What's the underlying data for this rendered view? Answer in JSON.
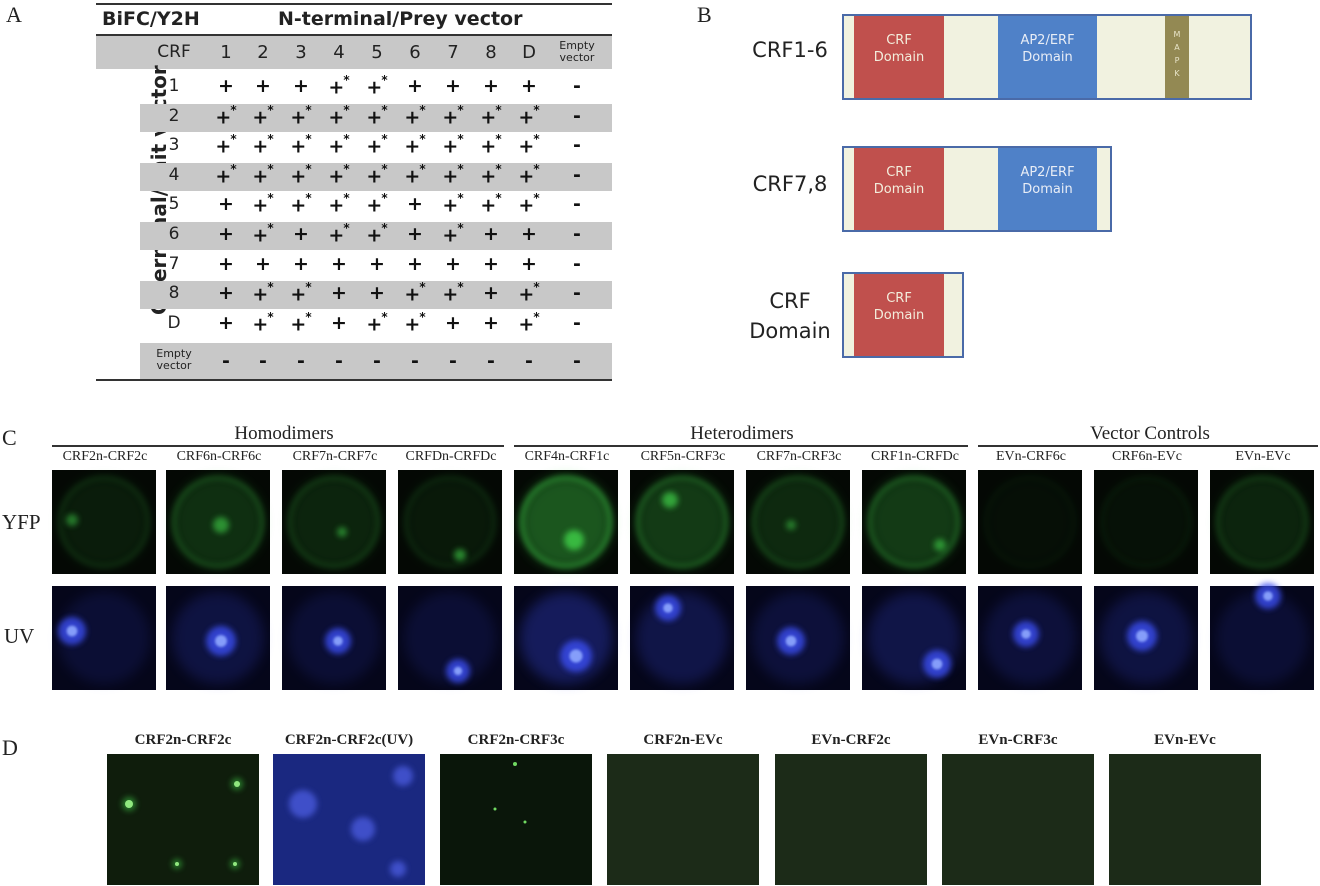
{
  "panel_labels": {
    "a": "A",
    "b": "B",
    "c": "C",
    "d": "D"
  },
  "panelA": {
    "corner": "BiFC/Y2H",
    "prey_header": "N-terminal/Prey vector",
    "bait_header": "C-terminal/Bait vector",
    "crf_label": "CRF",
    "columns": [
      "1",
      "2",
      "3",
      "4",
      "5",
      "6",
      "7",
      "8",
      "D"
    ],
    "empty_col_line1": "Empty",
    "empty_col_line2": "vector",
    "rows": [
      {
        "label": "1",
        "cells": [
          "+",
          "+",
          "+",
          "+*",
          "+*",
          "+",
          "+",
          "+",
          "+"
        ],
        "empty": "-"
      },
      {
        "label": "2",
        "cells": [
          "+*",
          "+*",
          "+*",
          "+*",
          "+*",
          "+*",
          "+*",
          "+*",
          "+*"
        ],
        "empty": "-"
      },
      {
        "label": "3",
        "cells": [
          "+*",
          "+*",
          "+*",
          "+*",
          "+*",
          "+*",
          "+*",
          "+*",
          "+*"
        ],
        "empty": "-"
      },
      {
        "label": "4",
        "cells": [
          "+*",
          "+*",
          "+*",
          "+*",
          "+*",
          "+*",
          "+*",
          "+*",
          "+*"
        ],
        "empty": "-"
      },
      {
        "label": "5",
        "cells": [
          "+",
          "+*",
          "+*",
          "+*",
          "+*",
          "+",
          "+*",
          "+*",
          "+*"
        ],
        "empty": "-"
      },
      {
        "label": "6",
        "cells": [
          "+",
          "+*",
          "+",
          "+*",
          "+*",
          "+",
          "+*",
          "+",
          "+"
        ],
        "empty": "-"
      },
      {
        "label": "7",
        "cells": [
          "+",
          "+",
          "+",
          "+",
          "+",
          "+",
          "+",
          "+",
          "+"
        ],
        "empty": "-"
      },
      {
        "label": "8",
        "cells": [
          "+",
          "+*",
          "+*",
          "+",
          "+",
          "+*",
          "+*",
          "+",
          "+*"
        ],
        "empty": "-"
      },
      {
        "label": "D",
        "cells": [
          "+",
          "+*",
          "+*",
          "+",
          "+*",
          "+*",
          "+",
          "+",
          "+*"
        ],
        "empty": "-"
      }
    ],
    "empty_row_line1": "Empty",
    "empty_row_line2": "vector",
    "empty_row_cells": [
      "-",
      "-",
      "-",
      "-",
      "-",
      "-",
      "-",
      "-",
      "-",
      "-"
    ]
  },
  "panelB": {
    "rows": [
      {
        "label": "CRF1-6",
        "crf_l1": "CRF",
        "crf_l2": "Domain",
        "ap2_l1": "AP2/ERF",
        "ap2_l2": "Domain",
        "mapk": [
          "M",
          "A",
          "P",
          "K"
        ]
      },
      {
        "label": "CRF7,8",
        "crf_l1": "CRF",
        "crf_l2": "Domain",
        "ap2_l1": "AP2/ERF",
        "ap2_l2": "Domain"
      },
      {
        "label_l1": "CRF",
        "label_l2": "Domain",
        "crf_l1": "CRF",
        "crf_l2": "Domain"
      }
    ]
  },
  "panelC": {
    "groups": [
      "Homodimers",
      "Heterodimers",
      "Vector Controls"
    ],
    "labels": [
      "CRF2n-CRF2c",
      "CRF6n-CRF6c",
      "CRF7n-CRF7c",
      "CRFDn-CRFDc",
      "CRF4n-CRF1c",
      "CRF5n-CRF3c",
      "CRF7n-CRF3c",
      "CRF1n-CRFDc",
      "EVn-CRF6c",
      "CRF6n-EVc",
      "EVn-EVc"
    ],
    "row_labels": [
      "YFP",
      "UV"
    ],
    "colors": {
      "yfp": "#3fd24a",
      "uv": "#3b4df0"
    }
  },
  "panelD": {
    "labels": [
      "CRF2n-CRF2c",
      "CRF2n-CRF2c(UV)",
      "CRF2n-CRF3c",
      "CRF2n-EVc",
      "EVn-CRF2c",
      "EVn-CRF3c",
      "EVn-EVc"
    ]
  }
}
